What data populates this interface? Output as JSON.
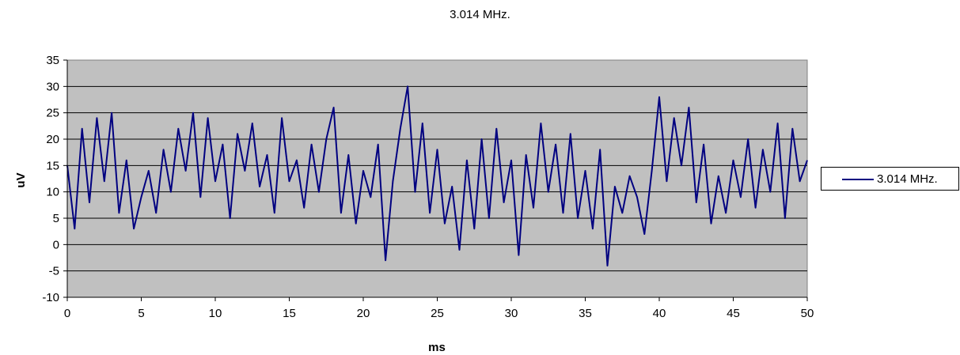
{
  "chart_data": {
    "type": "line",
    "title": "3.014 MHz.",
    "xlabel": "ms",
    "ylabel": "uV",
    "xlim": [
      0,
      50
    ],
    "ylim": [
      -10,
      35
    ],
    "xticks": [
      0,
      5,
      10,
      15,
      20,
      25,
      30,
      35,
      40,
      45,
      50
    ],
    "yticks": [
      -10,
      -5,
      0,
      5,
      10,
      15,
      20,
      25,
      30,
      35
    ],
    "grid": "horizontal",
    "plot_background": "#c0c0c0",
    "legend_position": "right",
    "series": [
      {
        "name": "3.014 MHz.",
        "color": "#000080",
        "x": [
          0,
          0.5,
          1,
          1.5,
          2,
          2.5,
          3,
          3.5,
          4,
          4.5,
          5,
          5.5,
          6,
          6.5,
          7,
          7.5,
          8,
          8.5,
          9,
          9.5,
          10,
          10.5,
          11,
          11.5,
          12,
          12.5,
          13,
          13.5,
          14,
          14.5,
          15,
          15.5,
          16,
          16.5,
          17,
          17.5,
          18,
          18.5,
          19,
          19.5,
          20,
          20.5,
          21,
          21.5,
          22,
          22.5,
          23,
          23.5,
          24,
          24.5,
          25,
          25.5,
          26,
          26.5,
          27,
          27.5,
          28,
          28.5,
          29,
          29.5,
          30,
          30.5,
          31,
          31.5,
          32,
          32.5,
          33,
          33.5,
          34,
          34.5,
          35,
          35.5,
          36,
          36.5,
          37,
          37.5,
          38,
          38.5,
          39,
          39.5,
          40,
          40.5,
          41,
          41.5,
          42,
          42.5,
          43,
          43.5,
          44,
          44.5,
          45,
          45.5,
          46,
          46.5,
          47,
          47.5,
          48,
          48.5,
          49,
          49.5,
          50
        ],
        "values": [
          15,
          3,
          22,
          8,
          24,
          12,
          25,
          6,
          16,
          3,
          9,
          14,
          6,
          18,
          10,
          22,
          14,
          25,
          9,
          24,
          12,
          19,
          5,
          21,
          14,
          23,
          11,
          17,
          6,
          24,
          12,
          16,
          7,
          19,
          10,
          20,
          26,
          6,
          17,
          4,
          14,
          9,
          19,
          -3,
          12,
          22,
          30,
          10,
          23,
          6,
          18,
          4,
          11,
          -1,
          16,
          3,
          20,
          5,
          22,
          8,
          16,
          -2,
          17,
          7,
          23,
          10,
          19,
          6,
          21,
          5,
          14,
          3,
          18,
          -4,
          11,
          6,
          13,
          9,
          2,
          14,
          28,
          12,
          24,
          15,
          26,
          8,
          19,
          4,
          13,
          6,
          16,
          9,
          20,
          7,
          18,
          10,
          23,
          5,
          22,
          12,
          16
        ]
      }
    ]
  }
}
